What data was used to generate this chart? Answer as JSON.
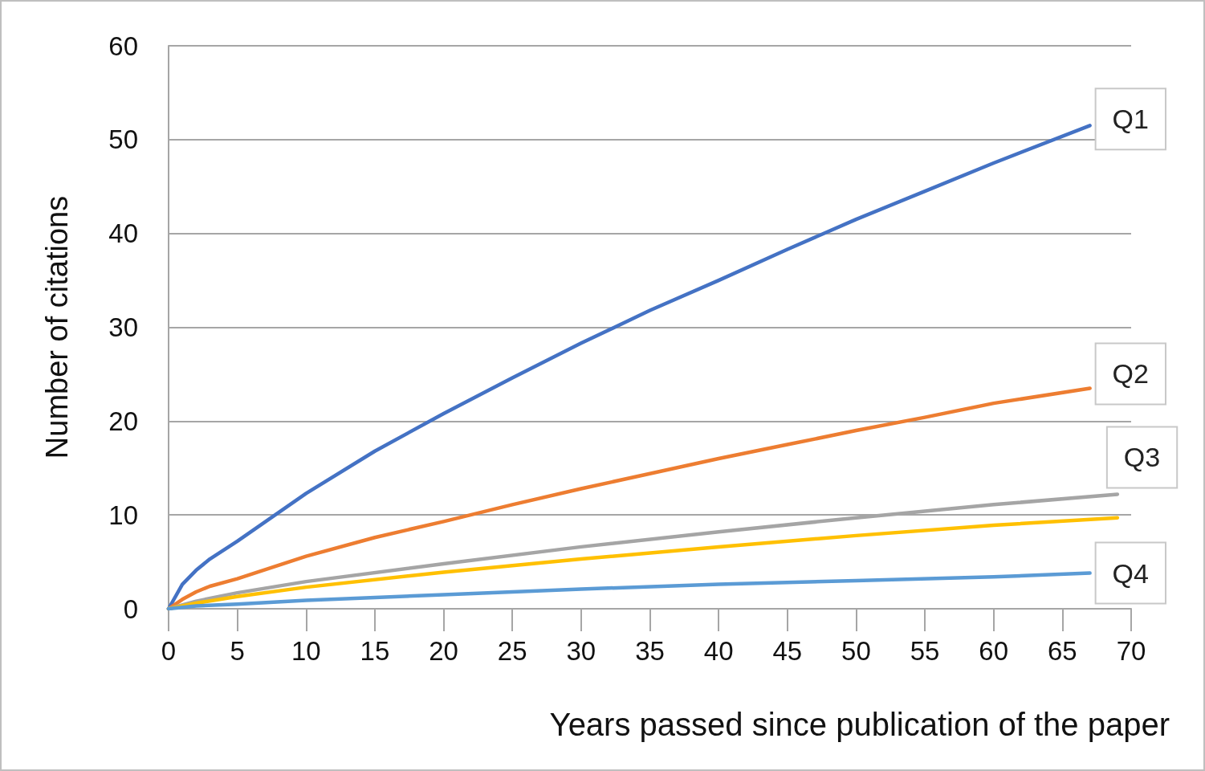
{
  "chart_data": {
    "type": "line",
    "xlabel": "Years passed since publication of the paper",
    "ylabel": "Number of citations",
    "xlim": [
      0,
      70
    ],
    "xticks": [
      0,
      5,
      10,
      15,
      20,
      25,
      30,
      35,
      40,
      45,
      50,
      55,
      60,
      65,
      70
    ],
    "ylim": [
      0,
      60
    ],
    "yticks": [
      0,
      10,
      20,
      30,
      40,
      50,
      60
    ],
    "grid": "y",
    "legend": false,
    "marker": "none",
    "line_style": "solid",
    "series": [
      {
        "name": "Q1",
        "color": "#4472c4",
        "x": [
          0,
          1,
          2,
          3,
          5,
          10,
          15,
          20,
          25,
          30,
          35,
          40,
          45,
          50,
          55,
          60,
          67
        ],
        "values": [
          0,
          2.6,
          4.1,
          5.3,
          7.2,
          12.3,
          16.8,
          20.8,
          24.6,
          28.3,
          31.8,
          35,
          38.3,
          41.5,
          44.5,
          47.5,
          51.5
        ]
      },
      {
        "name": "Q2",
        "color": "#ed7d31",
        "x": [
          0,
          1,
          2,
          3,
          5,
          10,
          15,
          20,
          25,
          30,
          35,
          40,
          45,
          50,
          55,
          60,
          67
        ],
        "values": [
          0,
          1,
          1.8,
          2.4,
          3.2,
          5.6,
          7.6,
          9.3,
          11.1,
          12.8,
          14.4,
          16,
          17.5,
          19,
          20.4,
          21.9,
          23.5
        ]
      },
      {
        "name": "Q3",
        "color": "#a5a5a5",
        "x": [
          0,
          2,
          5,
          10,
          20,
          30,
          40,
          50,
          60,
          69
        ],
        "values": [
          0,
          0.8,
          1.7,
          2.9,
          4.8,
          6.6,
          8.2,
          9.7,
          11.1,
          12.2
        ]
      },
      {
        "color": "#ffc000",
        "x": [
          0,
          2,
          5,
          10,
          20,
          30,
          40,
          50,
          60,
          69
        ],
        "values": [
          0,
          0.6,
          1.3,
          2.3,
          3.9,
          5.3,
          6.6,
          7.8,
          8.9,
          9.7
        ]
      },
      {
        "name": "Q4",
        "color": "#5b9bd5",
        "x": [
          0,
          2,
          5,
          10,
          20,
          30,
          40,
          50,
          60,
          67
        ],
        "values": [
          0,
          0.3,
          0.5,
          0.9,
          1.5,
          2.1,
          2.6,
          3,
          3.4,
          3.8
        ]
      }
    ]
  }
}
